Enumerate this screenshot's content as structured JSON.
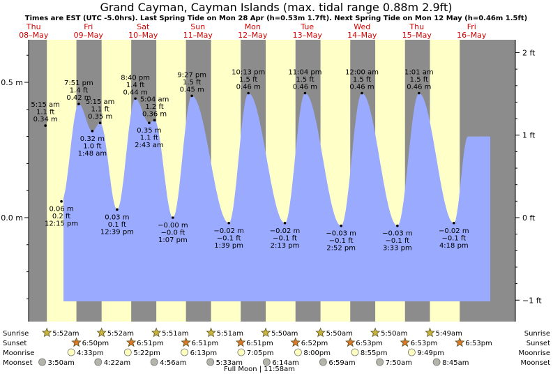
{
  "chart_data": {
    "type": "area",
    "title": "Grand Cayman, Cayman Islands (max. tidal range 0.88m 2.9ft)",
    "subtitle": "Times are EST (UTC -5.0hrs). Last Spring Tide on Mon 28 Apr (h=0.53m 1.7ft). Next Spring Tide on Mon 12 May (h=0.46m 1.5ft)",
    "days": [
      {
        "dow": "Thu",
        "date": "08–May"
      },
      {
        "dow": "Fri",
        "date": "09–May"
      },
      {
        "dow": "Sat",
        "date": "10–May"
      },
      {
        "dow": "Sun",
        "date": "11–May"
      },
      {
        "dow": "Mon",
        "date": "12–May"
      },
      {
        "dow": "Tue",
        "date": "13–May"
      },
      {
        "dow": "Wed",
        "date": "14–May"
      },
      {
        "dow": "Thu",
        "date": "15–May"
      },
      {
        "dow": "Fri",
        "date": "16–May"
      }
    ],
    "y_left_ticks": [
      {
        "v": 0.5,
        "label": "0.5 m"
      },
      {
        "v": 0.0,
        "label": "0.0 m"
      }
    ],
    "y_right_ticks": [
      {
        "ft": 2,
        "label": "2 ft"
      },
      {
        "ft": 1,
        "label": "1 ft"
      },
      {
        "ft": 0,
        "label": "0 ft"
      },
      {
        "ft": -1,
        "label": "−1 ft"
      }
    ],
    "ylim_m": [
      -0.38,
      0.65
    ],
    "tides": [
      {
        "time": "5:15 am",
        "ft": "1.1 ft",
        "m": "0.34 m",
        "h": 0.34,
        "t": 5.25,
        "type": "high"
      },
      {
        "time": "12:15 pm",
        "ft": "0.2 ft",
        "m": "0.06 m",
        "h": 0.06,
        "t": 12.25,
        "type": "low"
      },
      {
        "time": "7:51 pm",
        "ft": "1.4 ft",
        "m": "0.42 m",
        "h": 0.42,
        "t": 19.85,
        "type": "high"
      },
      {
        "time": "1:48 am",
        "ft": "1.0 ft",
        "m": "0.32 m",
        "h": 0.32,
        "t": 25.8,
        "type": "low"
      },
      {
        "time": "5:15 am",
        "ft": "1.1 ft",
        "m": "0.35 m",
        "h": 0.35,
        "t": 29.25,
        "type": "high"
      },
      {
        "time": "12:39 pm",
        "ft": "0.1 ft",
        "m": "0.03 m",
        "h": 0.03,
        "t": 36.65,
        "type": "low"
      },
      {
        "time": "8:40 pm",
        "ft": "1.4 ft",
        "m": "0.44 m",
        "h": 0.44,
        "t": 44.67,
        "type": "high"
      },
      {
        "time": "2:43 am",
        "ft": "1.1 ft",
        "m": "0.35 m",
        "h": 0.35,
        "t": 50.72,
        "type": "low"
      },
      {
        "time": "5:04 am",
        "ft": "1.2 ft",
        "m": "0.36 m",
        "h": 0.36,
        "t": 53.07,
        "type": "high"
      },
      {
        "time": "1:07 pm",
        "ft": "−0.0 ft",
        "m": "−0.00 m",
        "h": 0.0,
        "t": 61.12,
        "type": "low"
      },
      {
        "time": "9:27 pm",
        "ft": "1.5 ft",
        "m": "0.45 m",
        "h": 0.45,
        "t": 69.45,
        "type": "high"
      },
      {
        "time": "1:39 pm",
        "ft": "−0.1 ft",
        "m": "−0.02 m",
        "h": -0.02,
        "t": 85.65,
        "type": "low"
      },
      {
        "time": "10:13 pm",
        "ft": "1.5 ft",
        "m": "0.46 m",
        "h": 0.46,
        "t": 94.22,
        "type": "high"
      },
      {
        "time": "2:13 pm",
        "ft": "−0.1 ft",
        "m": "−0.02 m",
        "h": -0.02,
        "t": 110.22,
        "type": "low"
      },
      {
        "time": "11:04 pm",
        "ft": "1.5 ft",
        "m": "0.46 m",
        "h": 0.46,
        "t": 119.07,
        "type": "high"
      },
      {
        "time": "2:52 pm",
        "ft": "−0.1 ft",
        "m": "−0.03 m",
        "h": -0.03,
        "t": 134.87,
        "type": "low"
      },
      {
        "time": "12:00 am",
        "ft": "1.5 ft",
        "m": "0.46 m",
        "h": 0.46,
        "t": 144.0,
        "type": "high"
      },
      {
        "time": "3:33 pm",
        "ft": "−0.1 ft",
        "m": "−0.03 m",
        "h": -0.03,
        "t": 159.55,
        "type": "low"
      },
      {
        "time": "1:01 am",
        "ft": "1.5 ft",
        "m": "0.46 m",
        "h": 0.46,
        "t": 169.02,
        "type": "high"
      },
      {
        "time": "4:18 pm",
        "ft": "−0.1 ft",
        "m": "−0.02 m",
        "h": -0.02,
        "t": 184.3,
        "type": "low"
      }
    ],
    "sunrise": [
      {
        "label": "5:52am",
        "t": 29.87
      },
      {
        "label": "5:52am",
        "t": 53.87
      },
      {
        "label": "5:51am",
        "t": 77.85
      },
      {
        "label": "5:51am",
        "t": 101.85
      },
      {
        "label": "5:50am",
        "t": 125.83
      },
      {
        "label": "5:50am",
        "t": 149.83
      },
      {
        "label": "5:50am",
        "t": 173.83
      },
      {
        "label": "5:49am",
        "t": 197.82
      }
    ],
    "sunset": [
      {
        "label": "6:50pm",
        "t": 42.83
      },
      {
        "label": "6:51pm",
        "t": 66.85
      },
      {
        "label": "6:51pm",
        "t": 90.85
      },
      {
        "label": "6:51pm",
        "t": 114.85
      },
      {
        "label": "6:52pm",
        "t": 138.87
      },
      {
        "label": "6:53pm",
        "t": 162.88
      },
      {
        "label": "6:53pm",
        "t": 186.88
      },
      {
        "label": "6:53pm",
        "t": 210.88
      }
    ],
    "moonrise": [
      {
        "label": "4:33pm",
        "t": 40.55
      },
      {
        "label": "5:22pm",
        "t": 65.37
      },
      {
        "label": "6:13pm",
        "t": 90.22
      },
      {
        "label": "7:05pm",
        "t": 115.08
      },
      {
        "label": "8:00pm",
        "t": 140.0
      },
      {
        "label": "8:55pm",
        "t": 164.92
      },
      {
        "label": "9:49pm",
        "t": 189.82
      }
    ],
    "moonset": [
      {
        "label": "3:50am",
        "t": 27.83
      },
      {
        "label": "4:22am",
        "t": 52.37
      },
      {
        "label": "4:56am",
        "t": 76.93
      },
      {
        "label": "5:33am",
        "t": 101.55
      },
      {
        "label": "6:14am",
        "t": 126.23
      },
      {
        "label": "6:59am",
        "t": 150.98
      },
      {
        "label": "7:50am",
        "t": 175.83
      },
      {
        "label": "8:45am",
        "t": 200.75
      }
    ],
    "row_labels": {
      "sunrise": "Sunrise",
      "sunset": "Sunset",
      "moonrise": "Moonrise",
      "moonset": "Moonset"
    },
    "full_moon": "Full Moon | 11:58am",
    "colors": {
      "night": "#8c8c8c",
      "day": "#ffffc8",
      "water": "#9aaaff",
      "sun_rise": "#c8b43c",
      "sun_set": "#d87828",
      "moon_rise": "#ffffc0",
      "moon_set": "#b4b4aa"
    }
  }
}
